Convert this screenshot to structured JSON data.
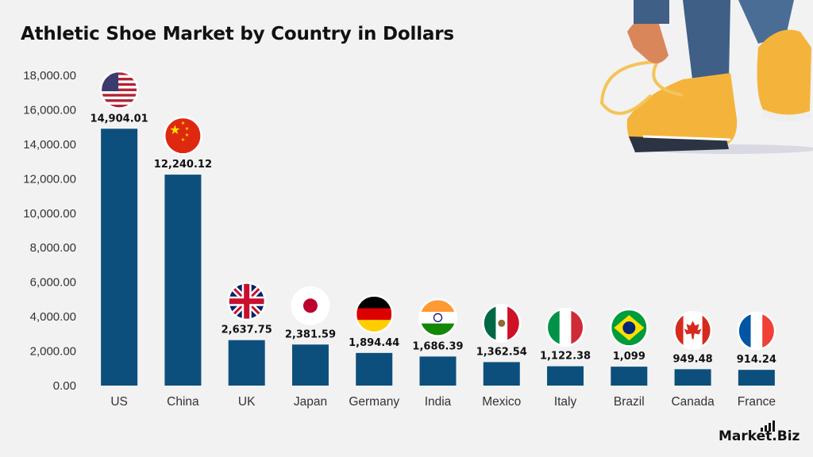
{
  "chart_data": {
    "type": "bar",
    "title": "Athletic Shoe Market by Country in Dollars",
    "categories": [
      "US",
      "China",
      "UK",
      "Japan",
      "Germany",
      "India",
      "Mexico",
      "Italy",
      "Brazil",
      "Canada",
      "France"
    ],
    "values": [
      14904.01,
      12240.12,
      2637.75,
      2381.59,
      1894.44,
      1686.39,
      1362.54,
      1122.38,
      1099,
      949.48,
      914.24
    ],
    "value_labels": [
      "14,904.01",
      "12,240.12",
      "2,637.75",
      "2,381.59",
      "1,894.44",
      "1,686.39",
      "1,362.54",
      "1,122.38",
      "1,099",
      "949.48",
      "914.24"
    ],
    "yticks": [
      "0.00",
      "2,000.00",
      "4,000.00",
      "6,000.00",
      "8,000.00",
      "10,000.00",
      "12,000.00",
      "14,000.00",
      "16,000.00",
      "18,000.00"
    ],
    "ylim": [
      0,
      18000
    ],
    "xlabel": "",
    "ylabel": "",
    "grid": false,
    "bar_color": "#0d4f7c",
    "flag_icons": [
      "us-flag-icon",
      "china-flag-icon",
      "uk-flag-icon",
      "japan-flag-icon",
      "germany-flag-icon",
      "india-flag-icon",
      "mexico-flag-icon",
      "italy-flag-icon",
      "brazil-flag-icon",
      "canada-flag-icon",
      "france-flag-icon"
    ]
  },
  "illustration": {
    "icon": "sneaker-tying-icon",
    "shoe_color": "#f4b43c"
  },
  "brand": {
    "logo_text": "Market.Biz"
  }
}
